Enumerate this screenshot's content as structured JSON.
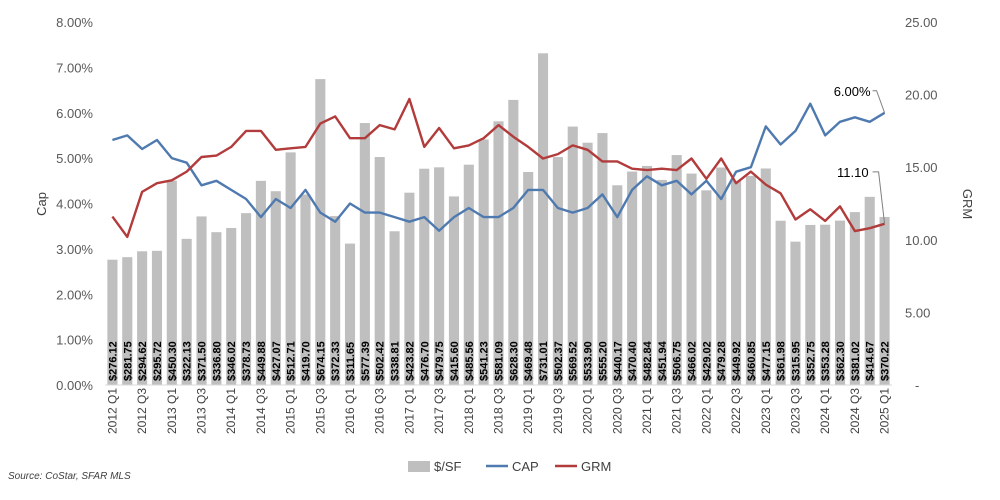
{
  "chart_data": {
    "type": "bar-line-combo",
    "categories": [
      "2012 Q1",
      "2012 Q2",
      "2012 Q3",
      "2012 Q4",
      "2013 Q1",
      "2013 Q2",
      "2013 Q3",
      "2013 Q4",
      "2014 Q1",
      "2014 Q2",
      "2014 Q3",
      "2014 Q4",
      "2015 Q1",
      "2015 Q2",
      "2015 Q3",
      "2015 Q4",
      "2016 Q1",
      "2016 Q2",
      "2016 Q3",
      "2016 Q4",
      "2017 Q1",
      "2017 Q2",
      "2017 Q3",
      "2017 Q4",
      "2018 Q1",
      "2018 Q2",
      "2018 Q3",
      "2018 Q4",
      "2019 Q1",
      "2019 Q2",
      "2019 Q3",
      "2019 Q4",
      "2020 Q1",
      "2020 Q2",
      "2020 Q3",
      "2020 Q4",
      "2021 Q1",
      "2021 Q2",
      "2021 Q3",
      "2021 Q4",
      "2022 Q1",
      "2022 Q2",
      "2022 Q3",
      "2022 Q4",
      "2023 Q1",
      "2023 Q2",
      "2023 Q3",
      "2023 Q4",
      "2024 Q1",
      "2024 Q2",
      "2024 Q3",
      "2024 Q4",
      "2025 Q1"
    ],
    "x_tick_labels": [
      "2012 Q1",
      "2012 Q3",
      "2013 Q1",
      "2013 Q3",
      "2014 Q1",
      "2014 Q3",
      "2015 Q1",
      "2015 Q3",
      "2016 Q1",
      "2016 Q3",
      "2017 Q1",
      "2017 Q3",
      "2018 Q1",
      "2018 Q3",
      "2019 Q1",
      "2019 Q3",
      "2020 Q1",
      "2020 Q3",
      "2021 Q1",
      "2021 Q3",
      "2022 Q1",
      "2022 Q3",
      "2023 Q1",
      "2023 Q3",
      "2024 Q1",
      "2024 Q3",
      "2025 Q1"
    ],
    "series": [
      {
        "name": "$/SF",
        "type": "bar",
        "axis": "right",
        "color": "#BFBFBF",
        "values": [
          276.12,
          281.75,
          294.62,
          295.72,
          450.3,
          322.13,
          371.5,
          336.8,
          346.02,
          378.73,
          449.88,
          427.07,
          512.71,
          419.7,
          674.15,
          372.33,
          311.65,
          577.39,
          502.42,
          338.81,
          423.82,
          476.7,
          479.75,
          415.6,
          485.56,
          541.23,
          581.09,
          628.3,
          469.48,
          731.01,
          502.37,
          569.52,
          533.9,
          555.2,
          440.17,
          470.4,
          482.84,
          451.94,
          506.75,
          466.02,
          429.02,
          479.28,
          449.92,
          460.85,
          477.15,
          361.98,
          315.95,
          352.75,
          353.28,
          362.3,
          381.02,
          414.67,
          370.22
        ],
        "labels": [
          "$276.12",
          "$281.75",
          "$294.62",
          "$295.72",
          "$450.30",
          "$322.13",
          "$371.50",
          "$336.80",
          "$346.02",
          "$378.73",
          "$449.88",
          "$427.07",
          "$512.71",
          "$419.70",
          "$674.15",
          "$372.33",
          "$311.65",
          "$577.39",
          "$502.42",
          "$338.81",
          "$423.82",
          "$476.70",
          "$479.75",
          "$415.60",
          "$485.56",
          "$541.23",
          "$581.09",
          "$628.30",
          "$469.48",
          "$731.01",
          "$502.37",
          "$569.52",
          "$533.90",
          "$555.20",
          "$440.17",
          "$470.40",
          "$482.84",
          "$451.94",
          "$506.75",
          "$466.02",
          "$429.02",
          "$479.28",
          "$449.92",
          "$460.85",
          "$477.15",
          "$361.98",
          "$315.95",
          "$352.75",
          "$353.28",
          "$362.30",
          "$381.02",
          "$414.67",
          "$370.22"
        ]
      },
      {
        "name": "CAP",
        "type": "line",
        "axis": "left",
        "color": "#4F7AB0",
        "values": [
          5.4,
          5.5,
          5.2,
          5.4,
          5.0,
          4.9,
          4.4,
          4.5,
          4.3,
          4.1,
          3.7,
          4.1,
          3.9,
          4.3,
          3.8,
          3.6,
          4.0,
          3.8,
          3.8,
          3.7,
          3.6,
          3.7,
          3.4,
          3.7,
          3.9,
          3.7,
          3.7,
          3.9,
          4.3,
          4.3,
          3.9,
          3.8,
          3.9,
          4.2,
          3.7,
          4.3,
          4.6,
          4.4,
          4.5,
          4.2,
          4.5,
          4.1,
          4.7,
          4.8,
          5.7,
          5.3,
          5.6,
          6.2,
          5.5,
          5.8,
          5.9,
          5.8,
          6.0
        ]
      },
      {
        "name": "GRM",
        "type": "line",
        "axis": "right",
        "color": "#B23B3B",
        "values": [
          11.6,
          10.2,
          13.3,
          13.9,
          14.1,
          14.7,
          15.7,
          15.8,
          16.4,
          17.5,
          17.5,
          16.2,
          16.3,
          16.4,
          18.0,
          18.5,
          17.0,
          17.0,
          17.9,
          17.6,
          19.7,
          16.4,
          17.7,
          16.3,
          16.5,
          17.0,
          17.9,
          17.1,
          16.4,
          15.6,
          15.9,
          16.5,
          16.2,
          15.4,
          15.4,
          14.9,
          14.8,
          14.9,
          14.8,
          15.6,
          14.2,
          15.6,
          13.9,
          14.7,
          13.8,
          13.2,
          11.4,
          12.1,
          11.3,
          12.3,
          10.6,
          10.8,
          11.1
        ]
      }
    ],
    "left_axis": {
      "title": "Cap",
      "range": [
        0,
        8
      ],
      "ticks": [
        "0.00%",
        "1.00%",
        "2.00%",
        "3.00%",
        "4.00%",
        "5.00%",
        "6.00%",
        "7.00%",
        "8.00%"
      ]
    },
    "right_axis": {
      "title": "GRM",
      "range": [
        0,
        25
      ],
      "ticks": [
        "-",
        "5.00",
        "10.00",
        "15.00",
        "20.00",
        "25.00"
      ]
    },
    "annotations": [
      {
        "text": "6.00%",
        "series": "CAP",
        "point": "2025 Q1"
      },
      {
        "text": "11.10",
        "series": "GRM",
        "point": "2025 Q1"
      }
    ],
    "legend": {
      "position": "bottom",
      "items": [
        "$/SF",
        "CAP",
        "GRM"
      ]
    },
    "gridlines": false
  },
  "source": "Source: CoStar, SFAR MLS"
}
